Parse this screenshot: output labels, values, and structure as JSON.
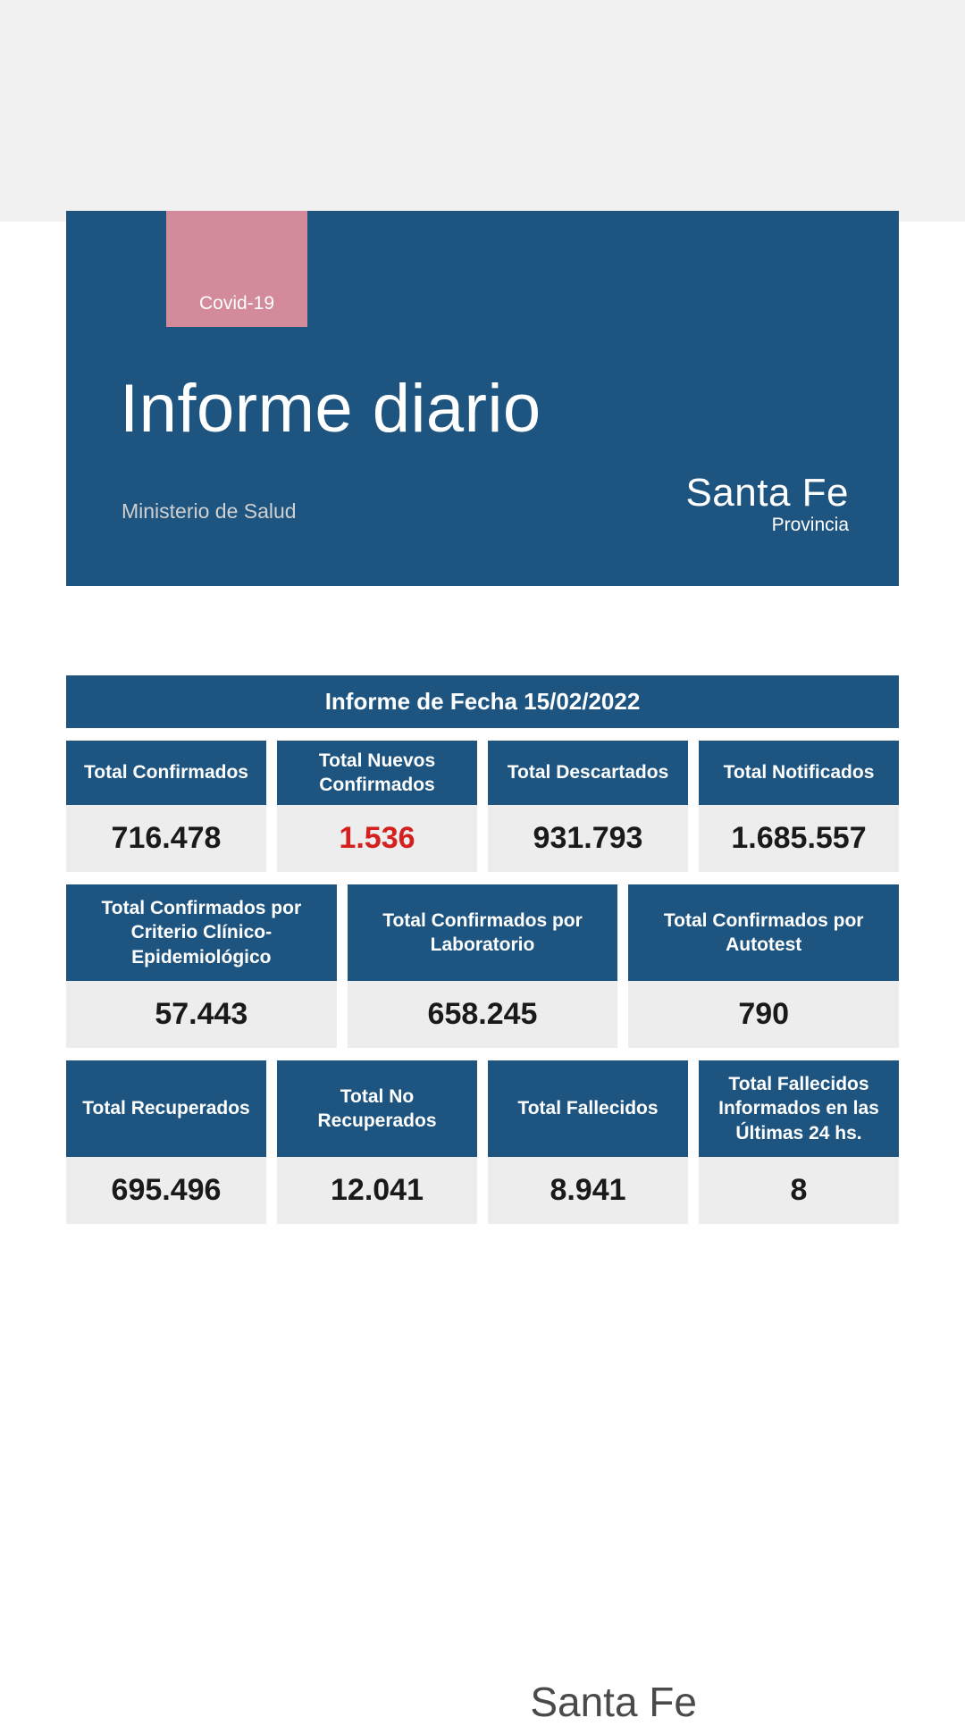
{
  "header": {
    "tag": "Covid-19",
    "title": "Informe diario",
    "ministry": "Ministerio de Salud",
    "brand_main": "Santa Fe",
    "brand_sub": "Provincia",
    "tag_bg": "#d38a9b",
    "card_bg": "#1e5580"
  },
  "date_bar": "Informe de Fecha 15/02/2022",
  "row1": [
    {
      "label": "Total Confirmados",
      "value": "716.478",
      "highlight": false
    },
    {
      "label": "Total Nuevos Confirmados",
      "value": "1.536",
      "highlight": true
    },
    {
      "label": "Total Descartados",
      "value": "931.793",
      "highlight": false
    },
    {
      "label": "Total Notificados",
      "value": "1.685.557",
      "highlight": false
    }
  ],
  "row2": [
    {
      "label": "Total Confirmados por Criterio Clínico-Epidemiológico",
      "value": "57.443"
    },
    {
      "label": "Total Confirmados por Laboratorio",
      "value": "658.245"
    },
    {
      "label": "Total Confirmados por Autotest",
      "value": "790"
    }
  ],
  "row3": [
    {
      "label": "Total Recuperados",
      "value": "695.496"
    },
    {
      "label": "Total No Recuperados",
      "value": "12.041"
    },
    {
      "label": "Total Fallecidos",
      "value": "8.941"
    },
    {
      "label": "Total Fallecidos Informados en las Últimas 24 hs.",
      "value": "8"
    }
  ],
  "footer_brand": "Santa Fe",
  "colors": {
    "primary": "#1e5580",
    "highlight": "#d52020",
    "value_bg": "#ededed",
    "top_gray": "#f1f1f1"
  }
}
